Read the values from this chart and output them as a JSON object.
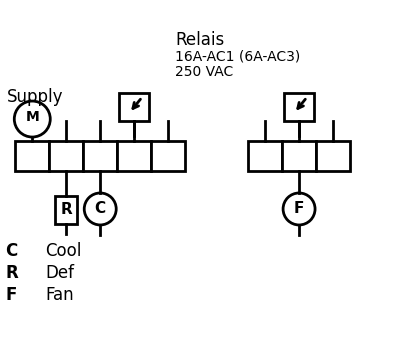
{
  "title_lines": [
    "Relais",
    "16A-AC1 (6A-AC3)",
    "250 VAC"
  ],
  "supply_label": "Supply",
  "motor_label": "M",
  "legend": [
    {
      "symbol": "C",
      "desc": "Cool"
    },
    {
      "symbol": "R",
      "desc": "Def"
    },
    {
      "symbol": "F",
      "desc": "Fan"
    }
  ],
  "bg_color": "#ffffff",
  "fg_color": "#000000",
  "line_width": 2.0
}
